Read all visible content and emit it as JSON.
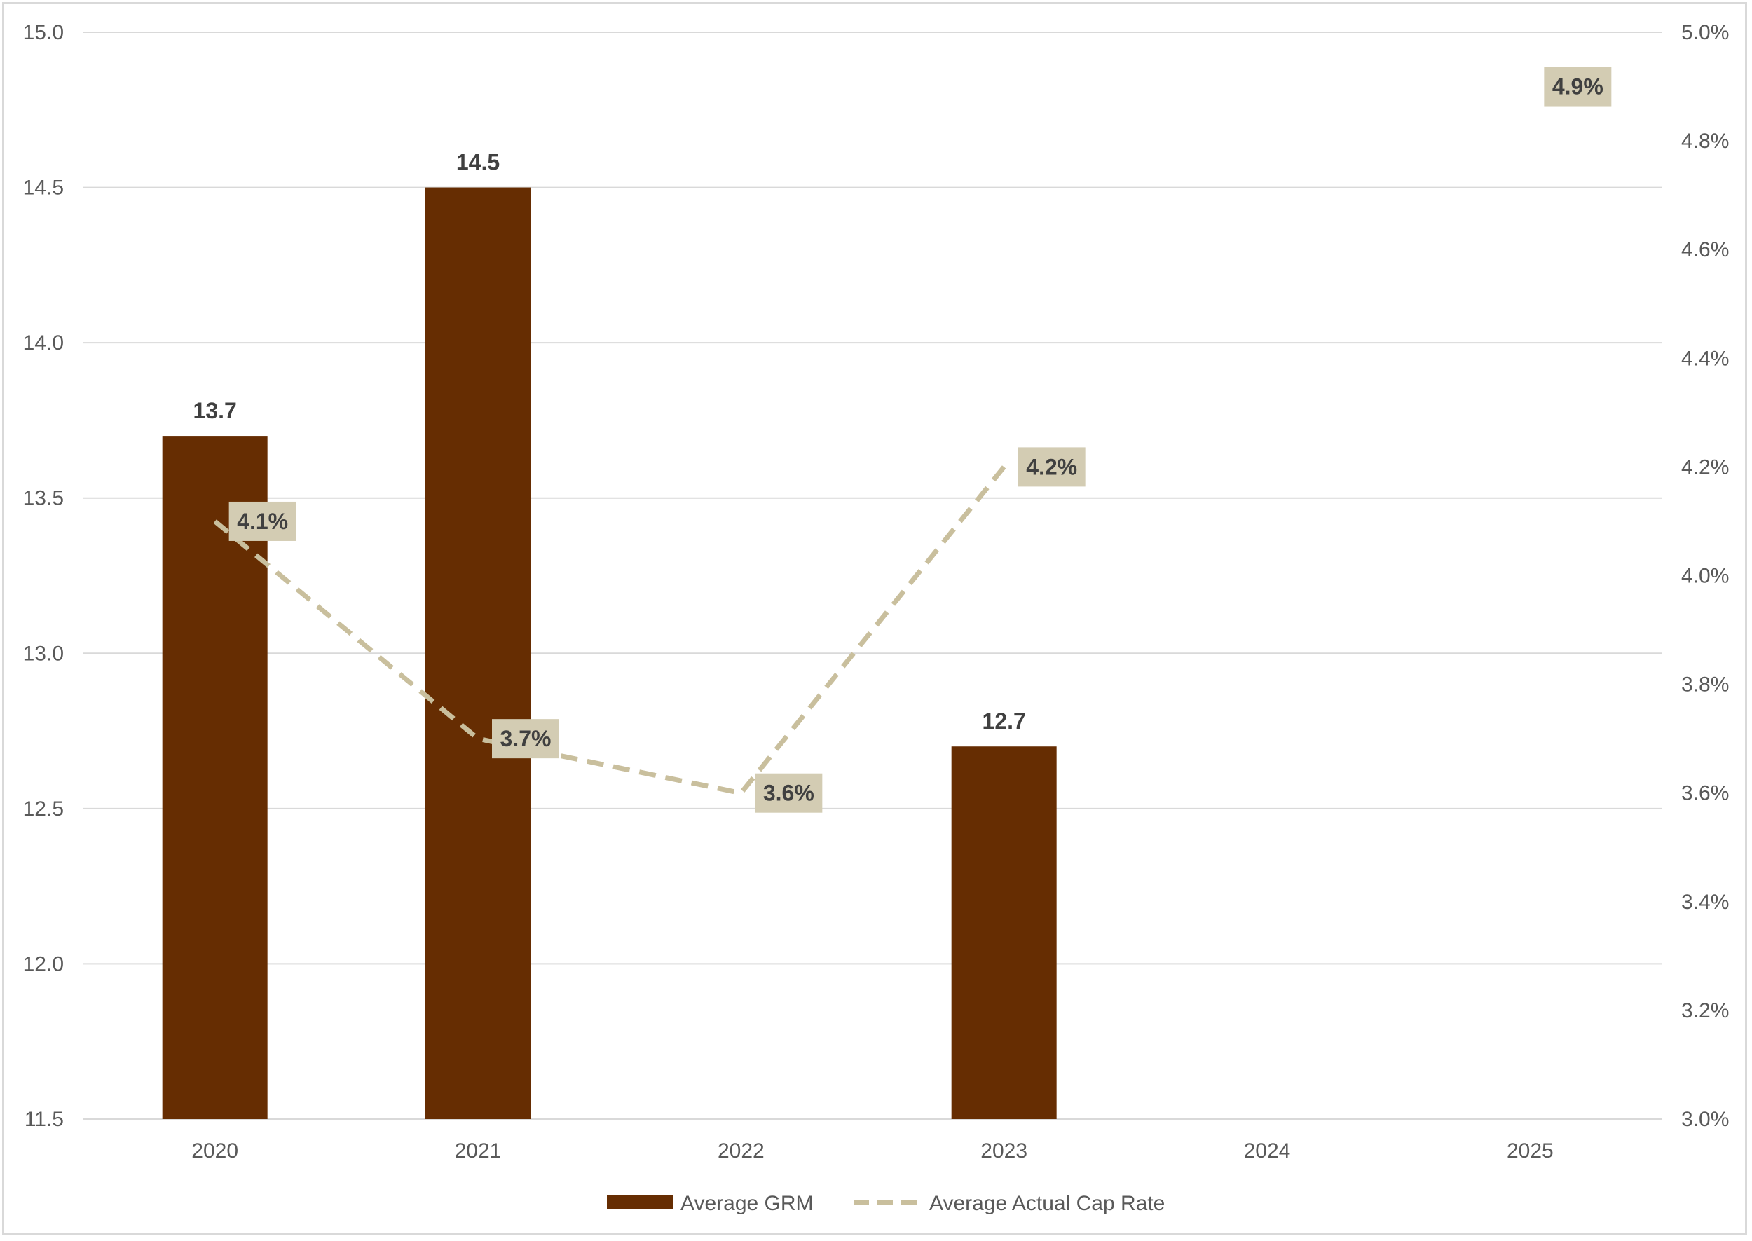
{
  "chart_data": {
    "type": "bar",
    "title": "",
    "xlabel": "",
    "ylabel": "",
    "categories": [
      "2020",
      "2021",
      "2022",
      "2023",
      "2024",
      "2025"
    ],
    "ylim": [
      11.5,
      15.0
    ],
    "y_ticks": [
      "11.5",
      "12.0",
      "12.5",
      "13.0",
      "13.5",
      "14.0",
      "14.5",
      "15.0"
    ],
    "y2lim": [
      0.03,
      0.05
    ],
    "y2_ticks": [
      "3.0%",
      "3.2%",
      "3.4%",
      "3.6%",
      "3.8%",
      "4.0%",
      "4.2%",
      "4.4%",
      "4.6%",
      "4.8%",
      "5.0%"
    ],
    "grid": true,
    "legend_position": "bottom",
    "series": [
      {
        "name": "Average GRM",
        "type": "bar",
        "axis": "left",
        "color": "#662d02",
        "values": [
          13.7,
          14.5,
          null,
          12.7,
          null,
          null
        ],
        "labels": [
          "13.7",
          "14.5",
          "",
          "12.7",
          "",
          ""
        ]
      },
      {
        "name": "Average Actual Cap Rate",
        "type": "line",
        "style": "dashed",
        "axis": "right",
        "color": "#c9bf9d",
        "label_bg": "#d3ccb3",
        "values": [
          0.041,
          0.037,
          0.036,
          0.042,
          null,
          0.049
        ],
        "labels": [
          "4.1%",
          "3.7%",
          "3.6%",
          "4.2%",
          "",
          "4.9%"
        ]
      }
    ]
  }
}
